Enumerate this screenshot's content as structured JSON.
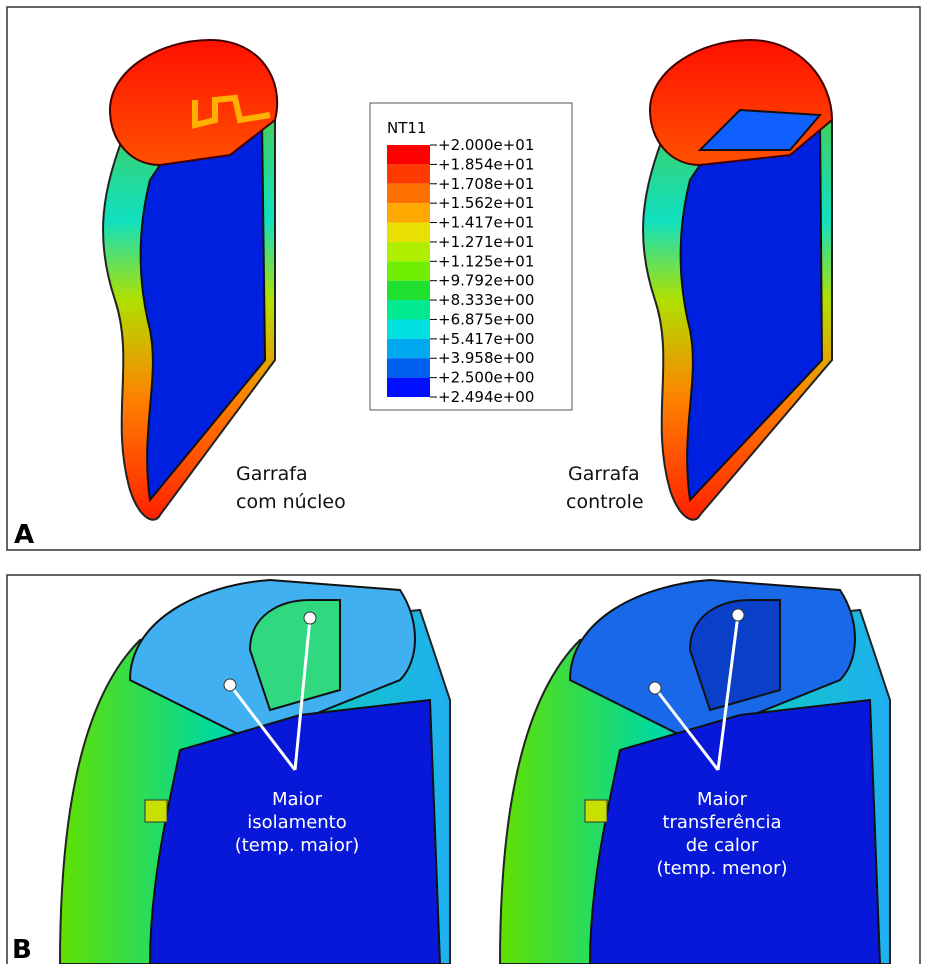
{
  "panels": [
    {
      "label": "A",
      "captions": [
        [
          "Garrafa",
          "com núcleo"
        ],
        [
          "Garrafa",
          "controle"
        ]
      ]
    },
    {
      "label": "B",
      "annotations": [
        [
          "Maior",
          "isolamento",
          "(temp. maior)"
        ],
        [
          "Maior",
          "transferência",
          "de calor",
          "(temp. menor)"
        ]
      ]
    }
  ],
  "legend": {
    "title": "NT11",
    "labels": [
      "+2.000e+01",
      "+1.854e+01",
      "+1.708e+01",
      "+1.562e+01",
      "+1.417e+01",
      "+1.271e+01",
      "+1.125e+01",
      "+9.792e+00",
      "+8.333e+00",
      "+6.875e+00",
      "+5.417e+00",
      "+3.958e+00",
      "+2.500e+00",
      "+2.494e+00"
    ],
    "colors": [
      "#ff0000",
      "#ff3a00",
      "#ff7000",
      "#ffa800",
      "#e8e000",
      "#b0ee00",
      "#70f000",
      "#20e030",
      "#00e890",
      "#00e0e0",
      "#00a8f0",
      "#0060f0",
      "#0010ff"
    ]
  }
}
